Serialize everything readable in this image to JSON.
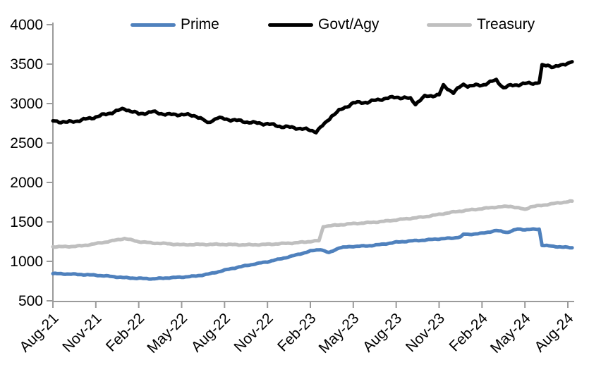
{
  "chart_data": {
    "type": "line",
    "title": "",
    "xlabel": "",
    "ylabel": "",
    "grid": false,
    "legend_position": "top",
    "x_unit": "months_since_Aug-21",
    "x_tick_labels": [
      "Aug-21",
      "Nov-21",
      "Feb-22",
      "May-22",
      "Aug-22",
      "Nov-22",
      "Feb-23",
      "May-23",
      "Aug-23",
      "Nov-23",
      "Feb-24",
      "May-24",
      "Aug-24"
    ],
    "x_tick_interval_months": 3,
    "y_axis": {
      "min": 500,
      "max": 4000,
      "tick_step": 500
    },
    "y_tick_labels": [
      "4000",
      "3500",
      "3000",
      "2500",
      "2000",
      "1500",
      "1000",
      "500"
    ],
    "axis_color": "#9b9b9b",
    "series": [
      {
        "name": "Prime",
        "color": "#4f81bd",
        "wiggle": 6,
        "points": [
          [
            0,
            845
          ],
          [
            1,
            840
          ],
          [
            2,
            833
          ],
          [
            3,
            825
          ],
          [
            4,
            810
          ],
          [
            5,
            793
          ],
          [
            6,
            785
          ],
          [
            7,
            779
          ],
          [
            8,
            790
          ],
          [
            9,
            800
          ],
          [
            10,
            814
          ],
          [
            11,
            843
          ],
          [
            12,
            888
          ],
          [
            13,
            928
          ],
          [
            14,
            963
          ],
          [
            15,
            995
          ],
          [
            16,
            1035
          ],
          [
            17,
            1080
          ],
          [
            18,
            1130
          ],
          [
            18.7,
            1152
          ],
          [
            19.3,
            1108
          ],
          [
            20,
            1172
          ],
          [
            21,
            1190
          ],
          [
            22,
            1196
          ],
          [
            23,
            1215
          ],
          [
            24,
            1243
          ],
          [
            25,
            1258
          ],
          [
            26,
            1270
          ],
          [
            27,
            1285
          ],
          [
            28,
            1295
          ],
          [
            28.5,
            1312
          ],
          [
            28.7,
            1345
          ],
          [
            29,
            1340
          ],
          [
            30,
            1355
          ],
          [
            31,
            1390
          ],
          [
            31.8,
            1368
          ],
          [
            32.5,
            1410
          ],
          [
            33,
            1402
          ],
          [
            34,
            1408
          ],
          [
            34.2,
            1205
          ],
          [
            35,
            1190
          ],
          [
            35.7,
            1180
          ],
          [
            36.3,
            1172
          ]
        ]
      },
      {
        "name": "Govt/Agy",
        "color": "#000000",
        "wiggle": 17,
        "points": [
          [
            0,
            2780
          ],
          [
            1,
            2762
          ],
          [
            2,
            2790
          ],
          [
            3,
            2830
          ],
          [
            4,
            2880
          ],
          [
            5,
            2935
          ],
          [
            6,
            2868
          ],
          [
            7,
            2895
          ],
          [
            8,
            2860
          ],
          [
            9,
            2862
          ],
          [
            10,
            2845
          ],
          [
            10.8,
            2762
          ],
          [
            11,
            2775
          ],
          [
            11.5,
            2818
          ],
          [
            12,
            2805
          ],
          [
            13,
            2782
          ],
          [
            14,
            2756
          ],
          [
            15,
            2742
          ],
          [
            16,
            2708
          ],
          [
            17,
            2692
          ],
          [
            18,
            2662
          ],
          [
            18.4,
            2645
          ],
          [
            19,
            2742
          ],
          [
            19.5,
            2845
          ],
          [
            20,
            2908
          ],
          [
            21,
            3008
          ],
          [
            22,
            3018
          ],
          [
            23,
            3058
          ],
          [
            24,
            3082
          ],
          [
            25,
            3062
          ],
          [
            25.35,
            2998
          ],
          [
            26,
            3088
          ],
          [
            27,
            3112
          ],
          [
            27.3,
            3225
          ],
          [
            28,
            3140
          ],
          [
            28.7,
            3245
          ],
          [
            29,
            3222
          ],
          [
            30,
            3235
          ],
          [
            31,
            3298
          ],
          [
            31.5,
            3200
          ],
          [
            32,
            3228
          ],
          [
            33,
            3252
          ],
          [
            34,
            3265
          ],
          [
            34.2,
            3478
          ],
          [
            34.6,
            3482
          ],
          [
            35,
            3470
          ],
          [
            35.5,
            3478
          ],
          [
            36,
            3512
          ],
          [
            36.3,
            3530
          ]
        ]
      },
      {
        "name": "Treasury",
        "color": "#bfbfbf",
        "wiggle": 7,
        "points": [
          [
            0,
            1186
          ],
          [
            1,
            1186
          ],
          [
            2,
            1196
          ],
          [
            3,
            1224
          ],
          [
            4,
            1255
          ],
          [
            5,
            1290
          ],
          [
            6,
            1250
          ],
          [
            7,
            1232
          ],
          [
            8,
            1224
          ],
          [
            9,
            1210
          ],
          [
            10,
            1214
          ],
          [
            11,
            1215
          ],
          [
            12,
            1215
          ],
          [
            13,
            1210
          ],
          [
            14,
            1210
          ],
          [
            15,
            1215
          ],
          [
            16,
            1225
          ],
          [
            17,
            1235
          ],
          [
            18,
            1252
          ],
          [
            18.6,
            1262
          ],
          [
            18.9,
            1438
          ],
          [
            19,
            1445
          ],
          [
            20,
            1462
          ],
          [
            21,
            1478
          ],
          [
            22,
            1490
          ],
          [
            23,
            1505
          ],
          [
            24,
            1525
          ],
          [
            25,
            1545
          ],
          [
            26,
            1565
          ],
          [
            27,
            1595
          ],
          [
            28,
            1625
          ],
          [
            29,
            1648
          ],
          [
            30,
            1668
          ],
          [
            31,
            1688
          ],
          [
            32,
            1698
          ],
          [
            33,
            1658
          ],
          [
            33.4,
            1692
          ],
          [
            34,
            1705
          ],
          [
            35,
            1732
          ],
          [
            36.3,
            1763
          ]
        ]
      }
    ]
  }
}
